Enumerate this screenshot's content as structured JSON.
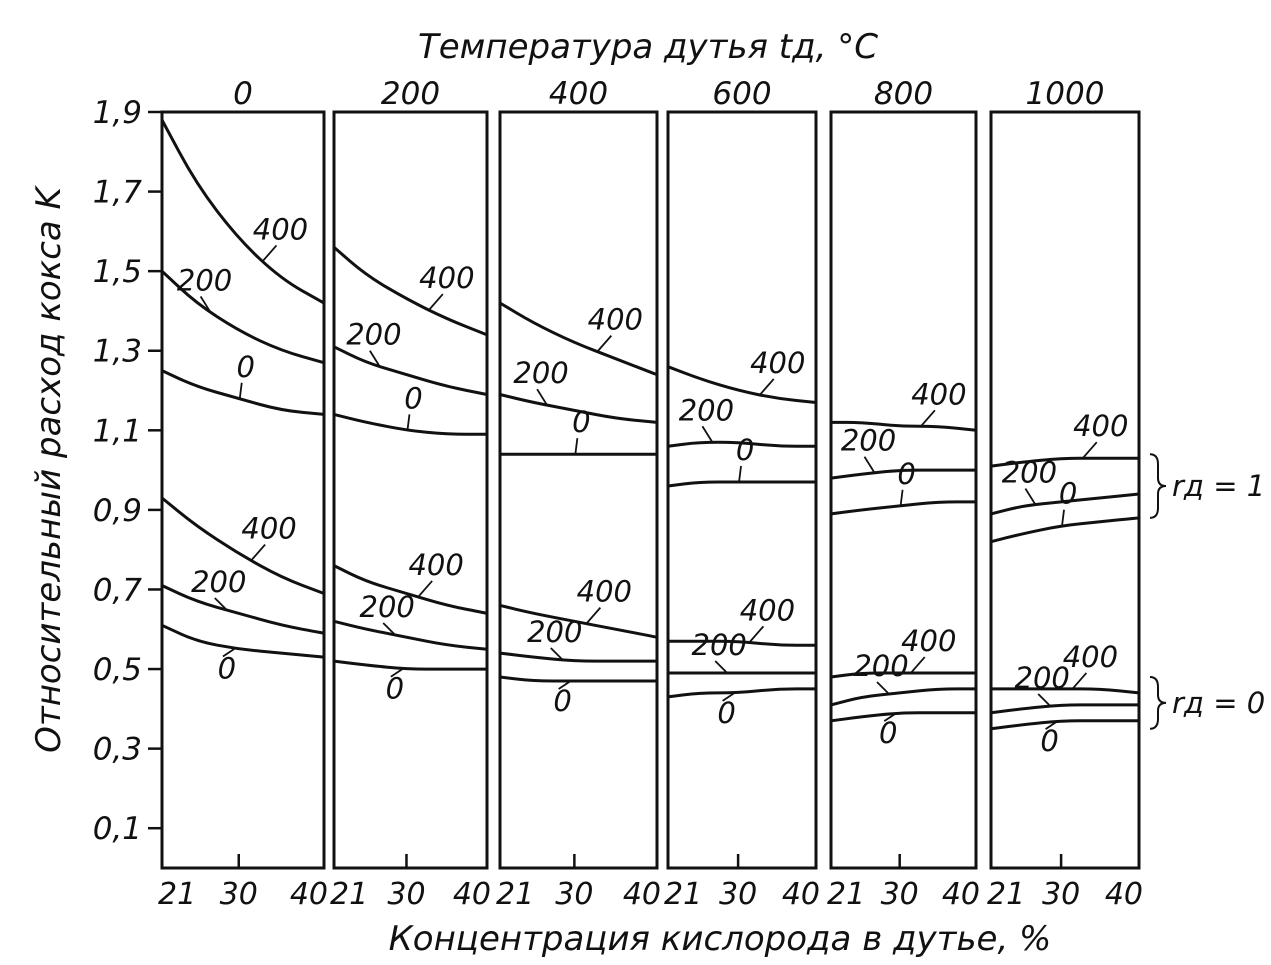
{
  "chart_data": {
    "type": "line",
    "title": "Температура дутья tд, °C",
    "xlabel": "Концентрация кислорода в дутье, %",
    "ylabel": "Относительный расход кокса K",
    "ylim": [
      0.0,
      1.9
    ],
    "y_ticks": [
      0.1,
      0.3,
      0.5,
      0.7,
      0.9,
      1.1,
      1.3,
      1.5,
      1.7,
      1.9
    ],
    "y_tick_labels": [
      "0,1",
      "0,3",
      "0,5",
      "0,7",
      "0,9",
      "1,1",
      "1,3",
      "1,5",
      "1,7",
      "1,9"
    ],
    "x_ticks": [
      21,
      30,
      40
    ],
    "x_tick_labels": [
      "21",
      "30",
      "40"
    ],
    "grid": false,
    "group_labels": [
      {
        "name": "rд=1",
        "text": "rд = 1"
      },
      {
        "name": "rд=0",
        "text": "rд = 0"
      }
    ],
    "panels": [
      {
        "label": "0",
        "series": [
          {
            "name": "400",
            "group": "rд=1",
            "x": [
              21,
              25,
              30,
              35,
              40
            ],
            "y": [
              1.88,
              1.72,
              1.58,
              1.48,
              1.42
            ]
          },
          {
            "name": "200",
            "group": "rд=1",
            "x": [
              21,
              25,
              30,
              35,
              40
            ],
            "y": [
              1.5,
              1.42,
              1.35,
              1.3,
              1.27
            ]
          },
          {
            "name": "0",
            "group": "rд=1",
            "x": [
              21,
              25,
              30,
              35,
              40
            ],
            "y": [
              1.25,
              1.21,
              1.18,
              1.15,
              1.14
            ]
          },
          {
            "name": "400",
            "group": "rд=0",
            "x": [
              21,
              25,
              30,
              35,
              40
            ],
            "y": [
              0.93,
              0.86,
              0.79,
              0.73,
              0.69
            ]
          },
          {
            "name": "200",
            "group": "rд=0",
            "x": [
              21,
              25,
              30,
              35,
              40
            ],
            "y": [
              0.71,
              0.67,
              0.64,
              0.61,
              0.59
            ]
          },
          {
            "name": "0",
            "group": "rд=0",
            "x": [
              21,
              25,
              30,
              35,
              40
            ],
            "y": [
              0.61,
              0.57,
              0.55,
              0.54,
              0.53
            ]
          }
        ]
      },
      {
        "label": "200",
        "series": [
          {
            "name": "400",
            "group": "rд=1",
            "x": [
              21,
              25,
              30,
              35,
              40
            ],
            "y": [
              1.56,
              1.49,
              1.43,
              1.38,
              1.34
            ]
          },
          {
            "name": "200",
            "group": "rд=1",
            "x": [
              21,
              25,
              30,
              35,
              40
            ],
            "y": [
              1.31,
              1.27,
              1.24,
              1.21,
              1.19
            ]
          },
          {
            "name": "0",
            "group": "rд=1",
            "x": [
              21,
              25,
              30,
              35,
              40
            ],
            "y": [
              1.14,
              1.12,
              1.1,
              1.09,
              1.09
            ]
          },
          {
            "name": "400",
            "group": "rд=0",
            "x": [
              21,
              25,
              30,
              35,
              40
            ],
            "y": [
              0.76,
              0.72,
              0.69,
              0.66,
              0.64
            ]
          },
          {
            "name": "200",
            "group": "rд=0",
            "x": [
              21,
              25,
              30,
              35,
              40
            ],
            "y": [
              0.62,
              0.6,
              0.58,
              0.56,
              0.55
            ]
          },
          {
            "name": "0",
            "group": "rд=0",
            "x": [
              21,
              25,
              30,
              35,
              40
            ],
            "y": [
              0.52,
              0.51,
              0.5,
              0.5,
              0.5
            ]
          }
        ]
      },
      {
        "label": "400",
        "series": [
          {
            "name": "400",
            "group": "rд=1",
            "x": [
              21,
              25,
              30,
              35,
              40
            ],
            "y": [
              1.42,
              1.37,
              1.32,
              1.28,
              1.24
            ]
          },
          {
            "name": "200",
            "group": "rд=1",
            "x": [
              21,
              25,
              30,
              35,
              40
            ],
            "y": [
              1.19,
              1.17,
              1.15,
              1.13,
              1.12
            ]
          },
          {
            "name": "0",
            "group": "rд=1",
            "x": [
              21,
              25,
              30,
              35,
              40
            ],
            "y": [
              1.04,
              1.04,
              1.04,
              1.04,
              1.04
            ]
          },
          {
            "name": "400",
            "group": "rд=0",
            "x": [
              21,
              25,
              30,
              35,
              40
            ],
            "y": [
              0.66,
              0.64,
              0.62,
              0.6,
              0.58
            ]
          },
          {
            "name": "200",
            "group": "rд=0",
            "x": [
              21,
              25,
              30,
              35,
              40
            ],
            "y": [
              0.54,
              0.53,
              0.52,
              0.52,
              0.52
            ]
          },
          {
            "name": "0",
            "group": "rд=0",
            "x": [
              21,
              25,
              30,
              35,
              40
            ],
            "y": [
              0.48,
              0.47,
              0.47,
              0.47,
              0.47
            ]
          }
        ]
      },
      {
        "label": "600",
        "series": [
          {
            "name": "400",
            "group": "rд=1",
            "x": [
              21,
              25,
              30,
              35,
              40
            ],
            "y": [
              1.26,
              1.23,
              1.2,
              1.18,
              1.17
            ]
          },
          {
            "name": "200",
            "group": "rд=1",
            "x": [
              21,
              25,
              30,
              35,
              40
            ],
            "y": [
              1.06,
              1.07,
              1.07,
              1.06,
              1.06
            ]
          },
          {
            "name": "0",
            "group": "rд=1",
            "x": [
              21,
              25,
              30,
              35,
              40
            ],
            "y": [
              0.96,
              0.97,
              0.97,
              0.97,
              0.97
            ]
          },
          {
            "name": "400",
            "group": "rд=0",
            "x": [
              21,
              25,
              30,
              35,
              40
            ],
            "y": [
              0.57,
              0.57,
              0.57,
              0.56,
              0.56
            ]
          },
          {
            "name": "200",
            "group": "rд=0",
            "x": [
              21,
              25,
              30,
              35,
              40
            ],
            "y": [
              0.49,
              0.49,
              0.49,
              0.49,
              0.49
            ]
          },
          {
            "name": "0",
            "group": "rд=0",
            "x": [
              21,
              25,
              30,
              35,
              40
            ],
            "y": [
              0.43,
              0.44,
              0.44,
              0.45,
              0.45
            ]
          }
        ]
      },
      {
        "label": "800",
        "series": [
          {
            "name": "400",
            "group": "rд=1",
            "x": [
              21,
              25,
              30,
              35,
              40
            ],
            "y": [
              1.12,
              1.12,
              1.11,
              1.11,
              1.1
            ]
          },
          {
            "name": "200",
            "group": "rд=1",
            "x": [
              21,
              25,
              30,
              35,
              40
            ],
            "y": [
              0.98,
              0.99,
              1.0,
              1.0,
              1.0
            ]
          },
          {
            "name": "0",
            "group": "rд=1",
            "x": [
              21,
              25,
              30,
              35,
              40
            ],
            "y": [
              0.89,
              0.9,
              0.91,
              0.92,
              0.92
            ]
          },
          {
            "name": "400",
            "group": "rд=0",
            "x": [
              21,
              25,
              30,
              35,
              40
            ],
            "y": [
              0.48,
              0.49,
              0.49,
              0.49,
              0.49
            ]
          },
          {
            "name": "200",
            "group": "rд=0",
            "x": [
              21,
              25,
              30,
              35,
              40
            ],
            "y": [
              0.41,
              0.43,
              0.44,
              0.45,
              0.45
            ]
          },
          {
            "name": "0",
            "group": "rд=0",
            "x": [
              21,
              25,
              30,
              35,
              40
            ],
            "y": [
              0.37,
              0.38,
              0.39,
              0.39,
              0.39
            ]
          }
        ]
      },
      {
        "label": "1000",
        "series": [
          {
            "name": "400",
            "group": "rд=1",
            "x": [
              21,
              25,
              30,
              35,
              40
            ],
            "y": [
              1.01,
              1.02,
              1.03,
              1.03,
              1.03
            ]
          },
          {
            "name": "200",
            "group": "rд=1",
            "x": [
              21,
              25,
              30,
              35,
              40
            ],
            "y": [
              0.89,
              0.91,
              0.92,
              0.93,
              0.94
            ]
          },
          {
            "name": "0",
            "group": "rд=1",
            "x": [
              21,
              25,
              30,
              35,
              40
            ],
            "y": [
              0.82,
              0.84,
              0.86,
              0.87,
              0.88
            ]
          },
          {
            "name": "400",
            "group": "rд=0",
            "x": [
              21,
              25,
              30,
              35,
              40
            ],
            "y": [
              0.45,
              0.45,
              0.45,
              0.45,
              0.44
            ]
          },
          {
            "name": "200",
            "group": "rд=0",
            "x": [
              21,
              25,
              30,
              35,
              40
            ],
            "y": [
              0.39,
              0.4,
              0.41,
              0.41,
              0.41
            ]
          },
          {
            "name": "0",
            "group": "rд=0",
            "x": [
              21,
              25,
              30,
              35,
              40
            ],
            "y": [
              0.35,
              0.36,
              0.37,
              0.37,
              0.37
            ]
          }
        ]
      }
    ]
  }
}
